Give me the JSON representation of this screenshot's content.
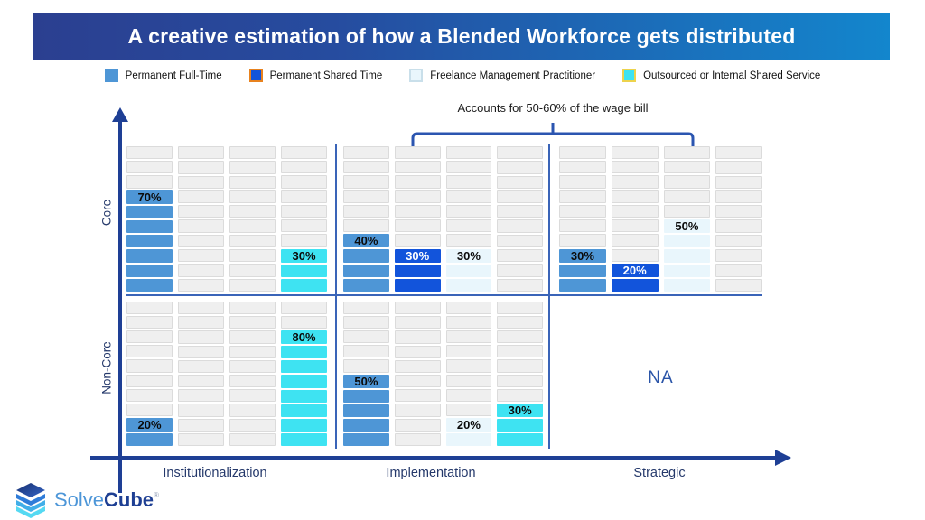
{
  "title": "A creative estimation of how a Blended Workforce gets distributed",
  "legend": {
    "items": [
      {
        "label": "Permanent Full-Time",
        "fill": "#4E96D6",
        "border": "#4E96D6"
      },
      {
        "label": "Permanent Shared Time",
        "fill": "#1254DB",
        "border": "#E8821E"
      },
      {
        "label": "Freelance Management Practitioner",
        "fill": "#E9F6FC",
        "border": "#C9DFEA"
      },
      {
        "label": "Outsourced or Internal Shared Service",
        "fill": "#3EE3F2",
        "border": "#EDD34D"
      }
    ]
  },
  "annotation": {
    "text": "Accounts for 50-60% of the wage bill"
  },
  "axes": {
    "y_label_top": "Core",
    "y_label_bottom": "Non-Core",
    "x_labels": [
      "Institutionalization",
      "Implementation",
      "Strategic"
    ]
  },
  "na_text": "NA",
  "logo": {
    "name_light": "Solve",
    "name_bold": "Cube",
    "registered": "®"
  },
  "chart_data": {
    "type": "heatmap",
    "subtype": "matrix-of-stacked-cell-bars",
    "x_categories": [
      "Institutionalization",
      "Implementation",
      "Strategic"
    ],
    "y_categories": [
      "Core",
      "Non-Core"
    ],
    "cells_per_column": 10,
    "columns_per_quadrant": 4,
    "annotation": "Accounts for 50-60% of the wage bill (bracket spans Implementation and Strategic, Core row)",
    "series_colors": {
      "Permanent Full-Time": {
        "fill": "#4E96D6",
        "label": "#0B0B0B"
      },
      "Permanent Shared Time": {
        "fill": "#1254DB",
        "label": "#FFFFFF"
      },
      "Freelance Management Practitioner": {
        "fill": "#E9F6FC",
        "label": "#0B0B0B"
      },
      "Outsourced or Internal Shared Service": {
        "fill": "#3EE3F2",
        "label": "#0B0B0B"
      }
    },
    "quadrants": [
      {
        "y": "Core",
        "x": "Institutionalization",
        "columns": [
          {
            "series": "Permanent Full-Time",
            "percent": 70
          },
          {
            "series": null,
            "percent": 0
          },
          {
            "series": null,
            "percent": 0
          },
          {
            "series": "Outsourced or Internal Shared Service",
            "percent": 30
          }
        ]
      },
      {
        "y": "Core",
        "x": "Implementation",
        "columns": [
          {
            "series": "Permanent Full-Time",
            "percent": 40
          },
          {
            "series": "Permanent Shared Time",
            "percent": 30
          },
          {
            "series": "Freelance Management Practitioner",
            "percent": 30
          },
          {
            "series": null,
            "percent": 0
          }
        ]
      },
      {
        "y": "Core",
        "x": "Strategic",
        "columns": [
          {
            "series": "Permanent Full-Time",
            "percent": 30
          },
          {
            "series": "Permanent Shared Time",
            "percent": 20
          },
          {
            "series": "Freelance Management Practitioner",
            "percent": 50
          },
          {
            "series": null,
            "percent": 0
          }
        ]
      },
      {
        "y": "Non-Core",
        "x": "Institutionalization",
        "columns": [
          {
            "series": "Permanent Full-Time",
            "percent": 20
          },
          {
            "series": null,
            "percent": 0
          },
          {
            "series": null,
            "percent": 0
          },
          {
            "series": "Outsourced or Internal Shared Service",
            "percent": 80
          }
        ]
      },
      {
        "y": "Non-Core",
        "x": "Implementation",
        "columns": [
          {
            "series": "Permanent Full-Time",
            "percent": 50
          },
          {
            "series": null,
            "percent": 0
          },
          {
            "series": "Freelance Management Practitioner",
            "percent": 20
          },
          {
            "series": "Outsourced or Internal Shared Service",
            "percent": 30
          }
        ]
      },
      {
        "y": "Non-Core",
        "x": "Strategic",
        "na": true,
        "value": "NA"
      }
    ]
  }
}
